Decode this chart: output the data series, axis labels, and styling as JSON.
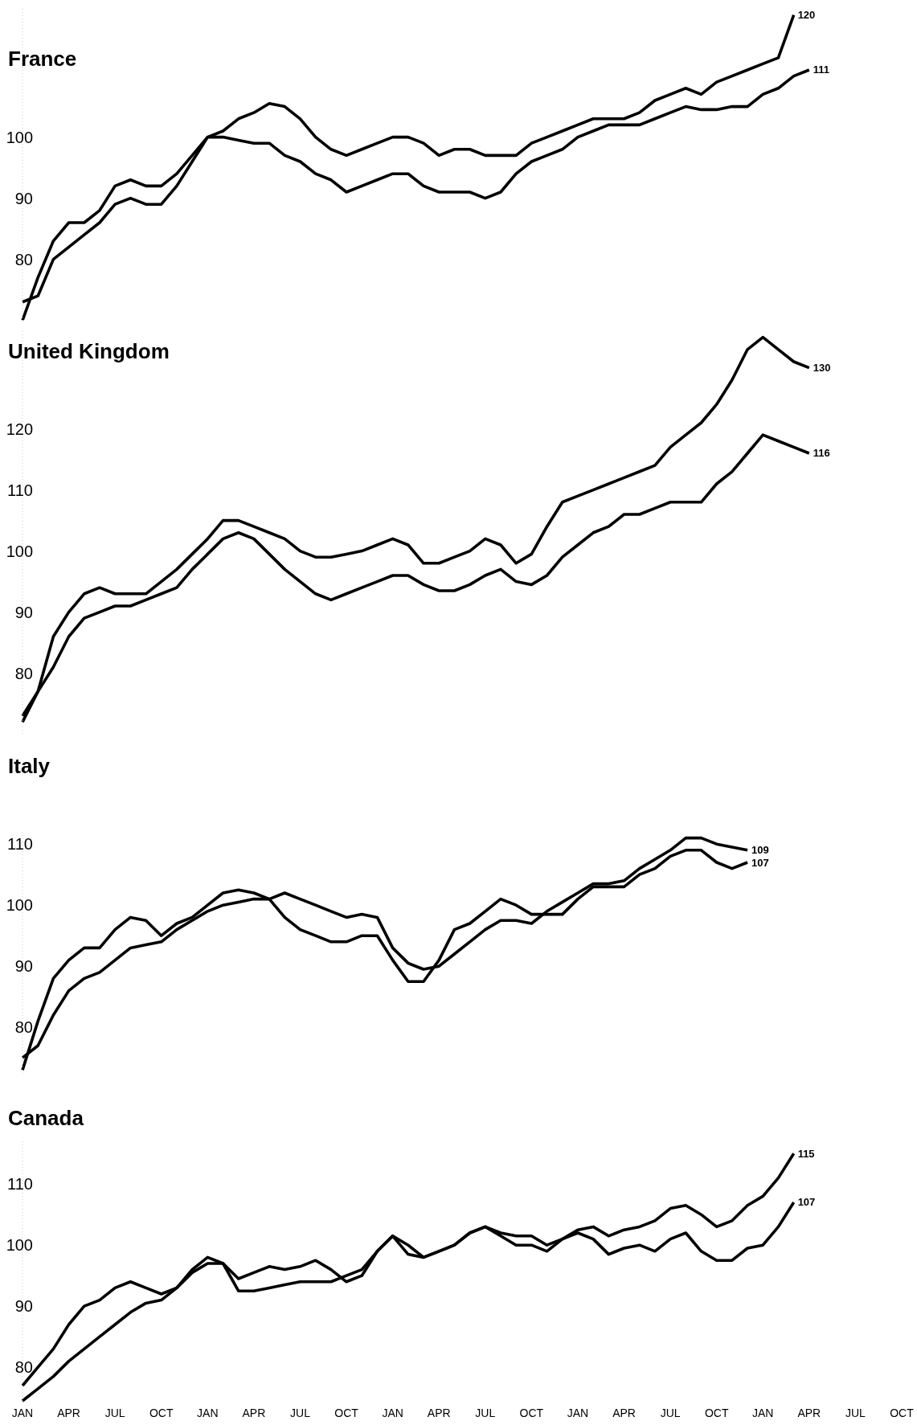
{
  "chart_data": [
    {
      "type": "line",
      "title": "France",
      "categories": [
        null,
        null,
        null,
        null,
        null,
        null,
        null,
        null,
        null,
        null,
        null,
        null,
        null,
        null,
        null,
        null,
        null,
        null,
        null,
        null,
        null,
        null,
        null,
        null,
        null,
        null,
        null,
        null,
        null,
        null,
        null,
        null,
        null,
        null,
        null,
        null,
        null,
        null,
        null,
        null,
        null,
        null,
        null,
        null,
        null,
        null,
        null,
        null,
        null,
        null,
        null,
        null,
        null,
        null,
        null,
        null,
        null,
        null
      ],
      "ylim": [
        70,
        121
      ],
      "yticks": [
        80,
        90,
        100
      ],
      "tick_labels": "y",
      "series": [
        {
          "color": "#000000",
          "values": [
            70,
            77,
            83,
            86,
            86,
            88,
            92,
            93,
            92,
            92,
            94,
            97,
            100,
            101,
            103,
            104,
            105.5,
            105,
            103,
            100,
            98,
            97,
            98,
            99,
            100,
            100,
            99,
            97,
            98,
            98,
            97,
            97,
            97,
            99,
            100,
            101,
            102,
            103,
            103,
            103,
            104,
            106,
            107,
            108,
            107,
            109,
            110,
            111,
            112,
            113,
            120,
            null,
            null,
            null,
            null,
            null,
            null,
            null
          ],
          "value_labels": [
            null,
            null,
            null,
            null,
            null,
            null,
            null,
            null,
            null,
            null,
            null,
            null,
            null,
            null,
            null,
            null,
            null,
            null,
            null,
            null,
            null,
            null,
            null,
            null,
            null,
            null,
            null,
            null,
            null,
            null,
            null,
            null,
            null,
            null,
            null,
            null,
            null,
            null,
            null,
            null,
            null,
            null,
            null,
            null,
            null,
            null,
            null,
            null,
            null,
            null,
            "120",
            null,
            null,
            null,
            null,
            null,
            null,
            null
          ]
        },
        {
          "color": "#000000",
          "values": [
            73,
            74,
            80,
            82,
            84,
            86,
            89,
            90,
            89,
            89,
            92,
            96,
            100,
            100,
            99.5,
            99,
            99,
            97,
            96,
            94,
            93,
            91,
            92,
            93,
            94,
            94,
            92,
            91,
            91,
            91,
            90,
            91,
            94,
            96,
            97,
            98,
            100,
            101,
            102,
            102,
            102,
            103,
            104,
            105,
            104.5,
            104.5,
            105,
            105,
            107,
            108,
            110,
            111,
            null,
            null,
            null,
            null,
            null,
            null
          ],
          "value_labels": [
            null,
            null,
            null,
            null,
            null,
            null,
            null,
            null,
            null,
            null,
            null,
            null,
            null,
            null,
            null,
            null,
            null,
            null,
            null,
            null,
            null,
            null,
            null,
            null,
            null,
            null,
            null,
            null,
            null,
            null,
            null,
            null,
            null,
            null,
            null,
            null,
            null,
            null,
            null,
            null,
            null,
            null,
            null,
            null,
            null,
            null,
            null,
            null,
            null,
            null,
            null,
            "111",
            null,
            null,
            null,
            null,
            null,
            null
          ]
        }
      ]
    },
    {
      "type": "line",
      "title": "United Kingdom",
      "categories": [
        null,
        null,
        null,
        null,
        null,
        null,
        null,
        null,
        null,
        null,
        null,
        null,
        null,
        null,
        null,
        null,
        null,
        null,
        null,
        null,
        null,
        null,
        null,
        null,
        null,
        null,
        null,
        null,
        null,
        null,
        null,
        null,
        null,
        null,
        null,
        null,
        null,
        null,
        null,
        null,
        null,
        null,
        null,
        null,
        null,
        null,
        null,
        null,
        null,
        null,
        null,
        null,
        null,
        null,
        null,
        null,
        null,
        null
      ],
      "ylim": [
        70,
        136
      ],
      "yticks": [
        80,
        90,
        100,
        110,
        120
      ],
      "tick_labels": "y",
      "series": [
        {
          "color": "#000000",
          "values": [
            73,
            77,
            86,
            90,
            93,
            94,
            93,
            93,
            93,
            95,
            97,
            99.5,
            102,
            105,
            105,
            104,
            103,
            102,
            100,
            99,
            99,
            99.5,
            100,
            101,
            102,
            101,
            98,
            98,
            99,
            100,
            102,
            101,
            98,
            99.5,
            104,
            108,
            109,
            110,
            111,
            112,
            113,
            114,
            117,
            119,
            121,
            124,
            128,
            133,
            135,
            133,
            131,
            130,
            null,
            null,
            null,
            null,
            null,
            null
          ],
          "value_labels": [
            null,
            null,
            null,
            null,
            null,
            null,
            null,
            null,
            null,
            null,
            null,
            null,
            null,
            null,
            null,
            null,
            null,
            null,
            null,
            null,
            null,
            null,
            null,
            null,
            null,
            null,
            null,
            null,
            null,
            null,
            null,
            null,
            null,
            null,
            null,
            null,
            null,
            null,
            null,
            null,
            null,
            null,
            null,
            null,
            null,
            null,
            null,
            null,
            null,
            null,
            null,
            "130",
            null,
            null,
            null,
            null,
            null,
            null
          ]
        },
        {
          "color": "#000000",
          "values": [
            72,
            77,
            81,
            86,
            89,
            90,
            91,
            91,
            92,
            93,
            94,
            97,
            99.5,
            102,
            103,
            102,
            99.5,
            97,
            95,
            93,
            92,
            93,
            94,
            95,
            96,
            96,
            94.5,
            93.5,
            93.5,
            94.5,
            96,
            97,
            95,
            94.5,
            96,
            99,
            101,
            103,
            104,
            106,
            106,
            107,
            108,
            108,
            108,
            111,
            113,
            116,
            119,
            118,
            117,
            116,
            null,
            null,
            null,
            null,
            null,
            null
          ],
          "value_labels": [
            null,
            null,
            null,
            null,
            null,
            null,
            null,
            null,
            null,
            null,
            null,
            null,
            null,
            null,
            null,
            null,
            null,
            null,
            null,
            null,
            null,
            null,
            null,
            null,
            null,
            null,
            null,
            null,
            null,
            null,
            null,
            null,
            null,
            null,
            null,
            null,
            null,
            null,
            null,
            null,
            null,
            null,
            null,
            null,
            null,
            null,
            null,
            null,
            null,
            null,
            null,
            "116",
            null,
            null,
            null,
            null,
            null,
            null
          ]
        }
      ]
    },
    {
      "type": "line",
      "title": "Italy",
      "categories": [
        null,
        null,
        null,
        null,
        null,
        null,
        null,
        null,
        null,
        null,
        null,
        null,
        null,
        null,
        null,
        null,
        null,
        null,
        null,
        null,
        null,
        null,
        null,
        null,
        null,
        null,
        null,
        null,
        null,
        null,
        null,
        null,
        null,
        null,
        null,
        null,
        null,
        null,
        null,
        null,
        null,
        null,
        null,
        null,
        null,
        null,
        null,
        null,
        null,
        null,
        null,
        null,
        null,
        null,
        null,
        null,
        null,
        null
      ],
      "ylim": [
        72,
        112
      ],
      "yticks": [
        80,
        90,
        100,
        110
      ],
      "tick_labels": "y",
      "series": [
        {
          "color": "#000000",
          "values": [
            73,
            81,
            88,
            91,
            93,
            93,
            96,
            98,
            97.5,
            95,
            97,
            98,
            100,
            102,
            102.5,
            102,
            101,
            98,
            96,
            95,
            94,
            94,
            95,
            95,
            91,
            87.5,
            87.5,
            91,
            96,
            97,
            99,
            101,
            100,
            98.5,
            98.5,
            98.5,
            101,
            103,
            103,
            103,
            105,
            106,
            108,
            109,
            109,
            107,
            106,
            107,
            null,
            null,
            null,
            null,
            null,
            null,
            null,
            null,
            null,
            null
          ],
          "value_labels": [
            null,
            null,
            null,
            null,
            null,
            null,
            null,
            null,
            null,
            null,
            null,
            null,
            null,
            null,
            null,
            null,
            null,
            null,
            null,
            null,
            null,
            null,
            null,
            null,
            null,
            null,
            null,
            null,
            null,
            null,
            null,
            null,
            null,
            null,
            null,
            null,
            null,
            null,
            null,
            null,
            null,
            null,
            null,
            null,
            null,
            null,
            null,
            "107",
            null,
            null,
            null,
            null,
            null,
            null,
            null,
            null,
            null,
            null
          ]
        },
        {
          "color": "#000000",
          "values": [
            75,
            77,
            82,
            86,
            88,
            89,
            91,
            93,
            93.5,
            94,
            96,
            97.5,
            99,
            100,
            100.5,
            101,
            101,
            102,
            101,
            100,
            99,
            98,
            98.5,
            98,
            93,
            90.5,
            89.5,
            90,
            92,
            94,
            96,
            97.5,
            97.5,
            97,
            99,
            100.5,
            102,
            103.5,
            103.5,
            104,
            106,
            107.5,
            109,
            111,
            111,
            110,
            109.5,
            109,
            null,
            null,
            null,
            null,
            null,
            null,
            null,
            null,
            null,
            null
          ],
          "value_labels": [
            null,
            null,
            null,
            null,
            null,
            null,
            null,
            null,
            null,
            null,
            null,
            null,
            null,
            null,
            null,
            null,
            null,
            null,
            null,
            null,
            null,
            null,
            null,
            null,
            null,
            null,
            null,
            null,
            null,
            null,
            null,
            null,
            null,
            null,
            null,
            null,
            null,
            null,
            null,
            null,
            null,
            null,
            null,
            null,
            null,
            null,
            null,
            "109",
            null,
            null,
            null,
            null,
            null,
            null,
            null,
            null,
            null,
            null
          ]
        }
      ]
    },
    {
      "type": "line",
      "title": "Canada",
      "categories": [
        "JAN",
        null,
        null,
        "APR",
        null,
        null,
        "JUL",
        null,
        null,
        "OCT",
        null,
        null,
        "JAN",
        null,
        null,
        "APR",
        null,
        null,
        "JUL",
        null,
        null,
        "OCT",
        null,
        null,
        "JAN",
        null,
        null,
        "APR",
        null,
        null,
        "JUL",
        null,
        null,
        "OCT",
        null,
        null,
        "JAN",
        null,
        null,
        "APR",
        null,
        null,
        "JUL",
        null,
        null,
        "OCT",
        null,
        null,
        "JAN",
        null,
        null,
        "APR",
        null,
        null,
        "JUL",
        null,
        null,
        "OCT"
      ],
      "ylim": [
        74,
        117
      ],
      "yticks": [
        80,
        90,
        100,
        110
      ],
      "series": [
        {
          "color": "#000000",
          "values": [
            77,
            80,
            83,
            87,
            90,
            91,
            93,
            94,
            93,
            92,
            93,
            96,
            98,
            97,
            94.5,
            95.5,
            96.5,
            96,
            96.5,
            97.5,
            96,
            94,
            95,
            99,
            101.5,
            100,
            98,
            99,
            100,
            102,
            103,
            102,
            101.5,
            101.5,
            100,
            101,
            102.5,
            103,
            101.5,
            102.5,
            103,
            104,
            106,
            106.5,
            105,
            103,
            104,
            106.5,
            108,
            111,
            115,
            null,
            null,
            null,
            null,
            null,
            null,
            null
          ],
          "value_labels": [
            null,
            null,
            null,
            null,
            null,
            null,
            null,
            null,
            null,
            null,
            null,
            null,
            null,
            null,
            null,
            null,
            null,
            null,
            null,
            null,
            null,
            null,
            null,
            null,
            null,
            null,
            null,
            null,
            null,
            null,
            null,
            null,
            null,
            null,
            null,
            null,
            null,
            null,
            null,
            null,
            null,
            null,
            null,
            null,
            null,
            null,
            null,
            null,
            null,
            null,
            "115",
            null,
            null,
            null,
            null,
            null,
            null,
            null
          ]
        },
        {
          "color": "#000000",
          "values": [
            74.5,
            76.5,
            78.5,
            81,
            83,
            85,
            87,
            89,
            90.5,
            91,
            93,
            95.5,
            97,
            97,
            92.5,
            92.5,
            93,
            93.5,
            94,
            94,
            94,
            95,
            96,
            99,
            101.5,
            98.5,
            98,
            99,
            100,
            102,
            103,
            101.5,
            100,
            100,
            99,
            101,
            102,
            101,
            98.5,
            99.5,
            100,
            99,
            101,
            102,
            99,
            97.5,
            97.5,
            99.5,
            100,
            103,
            107,
            null,
            null,
            null,
            null,
            null,
            null,
            null
          ],
          "value_labels": [
            null,
            null,
            null,
            null,
            null,
            null,
            null,
            null,
            null,
            null,
            null,
            null,
            null,
            null,
            null,
            null,
            null,
            null,
            null,
            null,
            null,
            null,
            null,
            null,
            null,
            null,
            null,
            null,
            null,
            null,
            null,
            null,
            null,
            null,
            null,
            null,
            null,
            null,
            null,
            null,
            null,
            null,
            null,
            null,
            null,
            null,
            null,
            null,
            null,
            null,
            "107",
            null,
            null,
            null,
            null,
            null,
            null,
            null
          ]
        }
      ]
    }
  ]
}
